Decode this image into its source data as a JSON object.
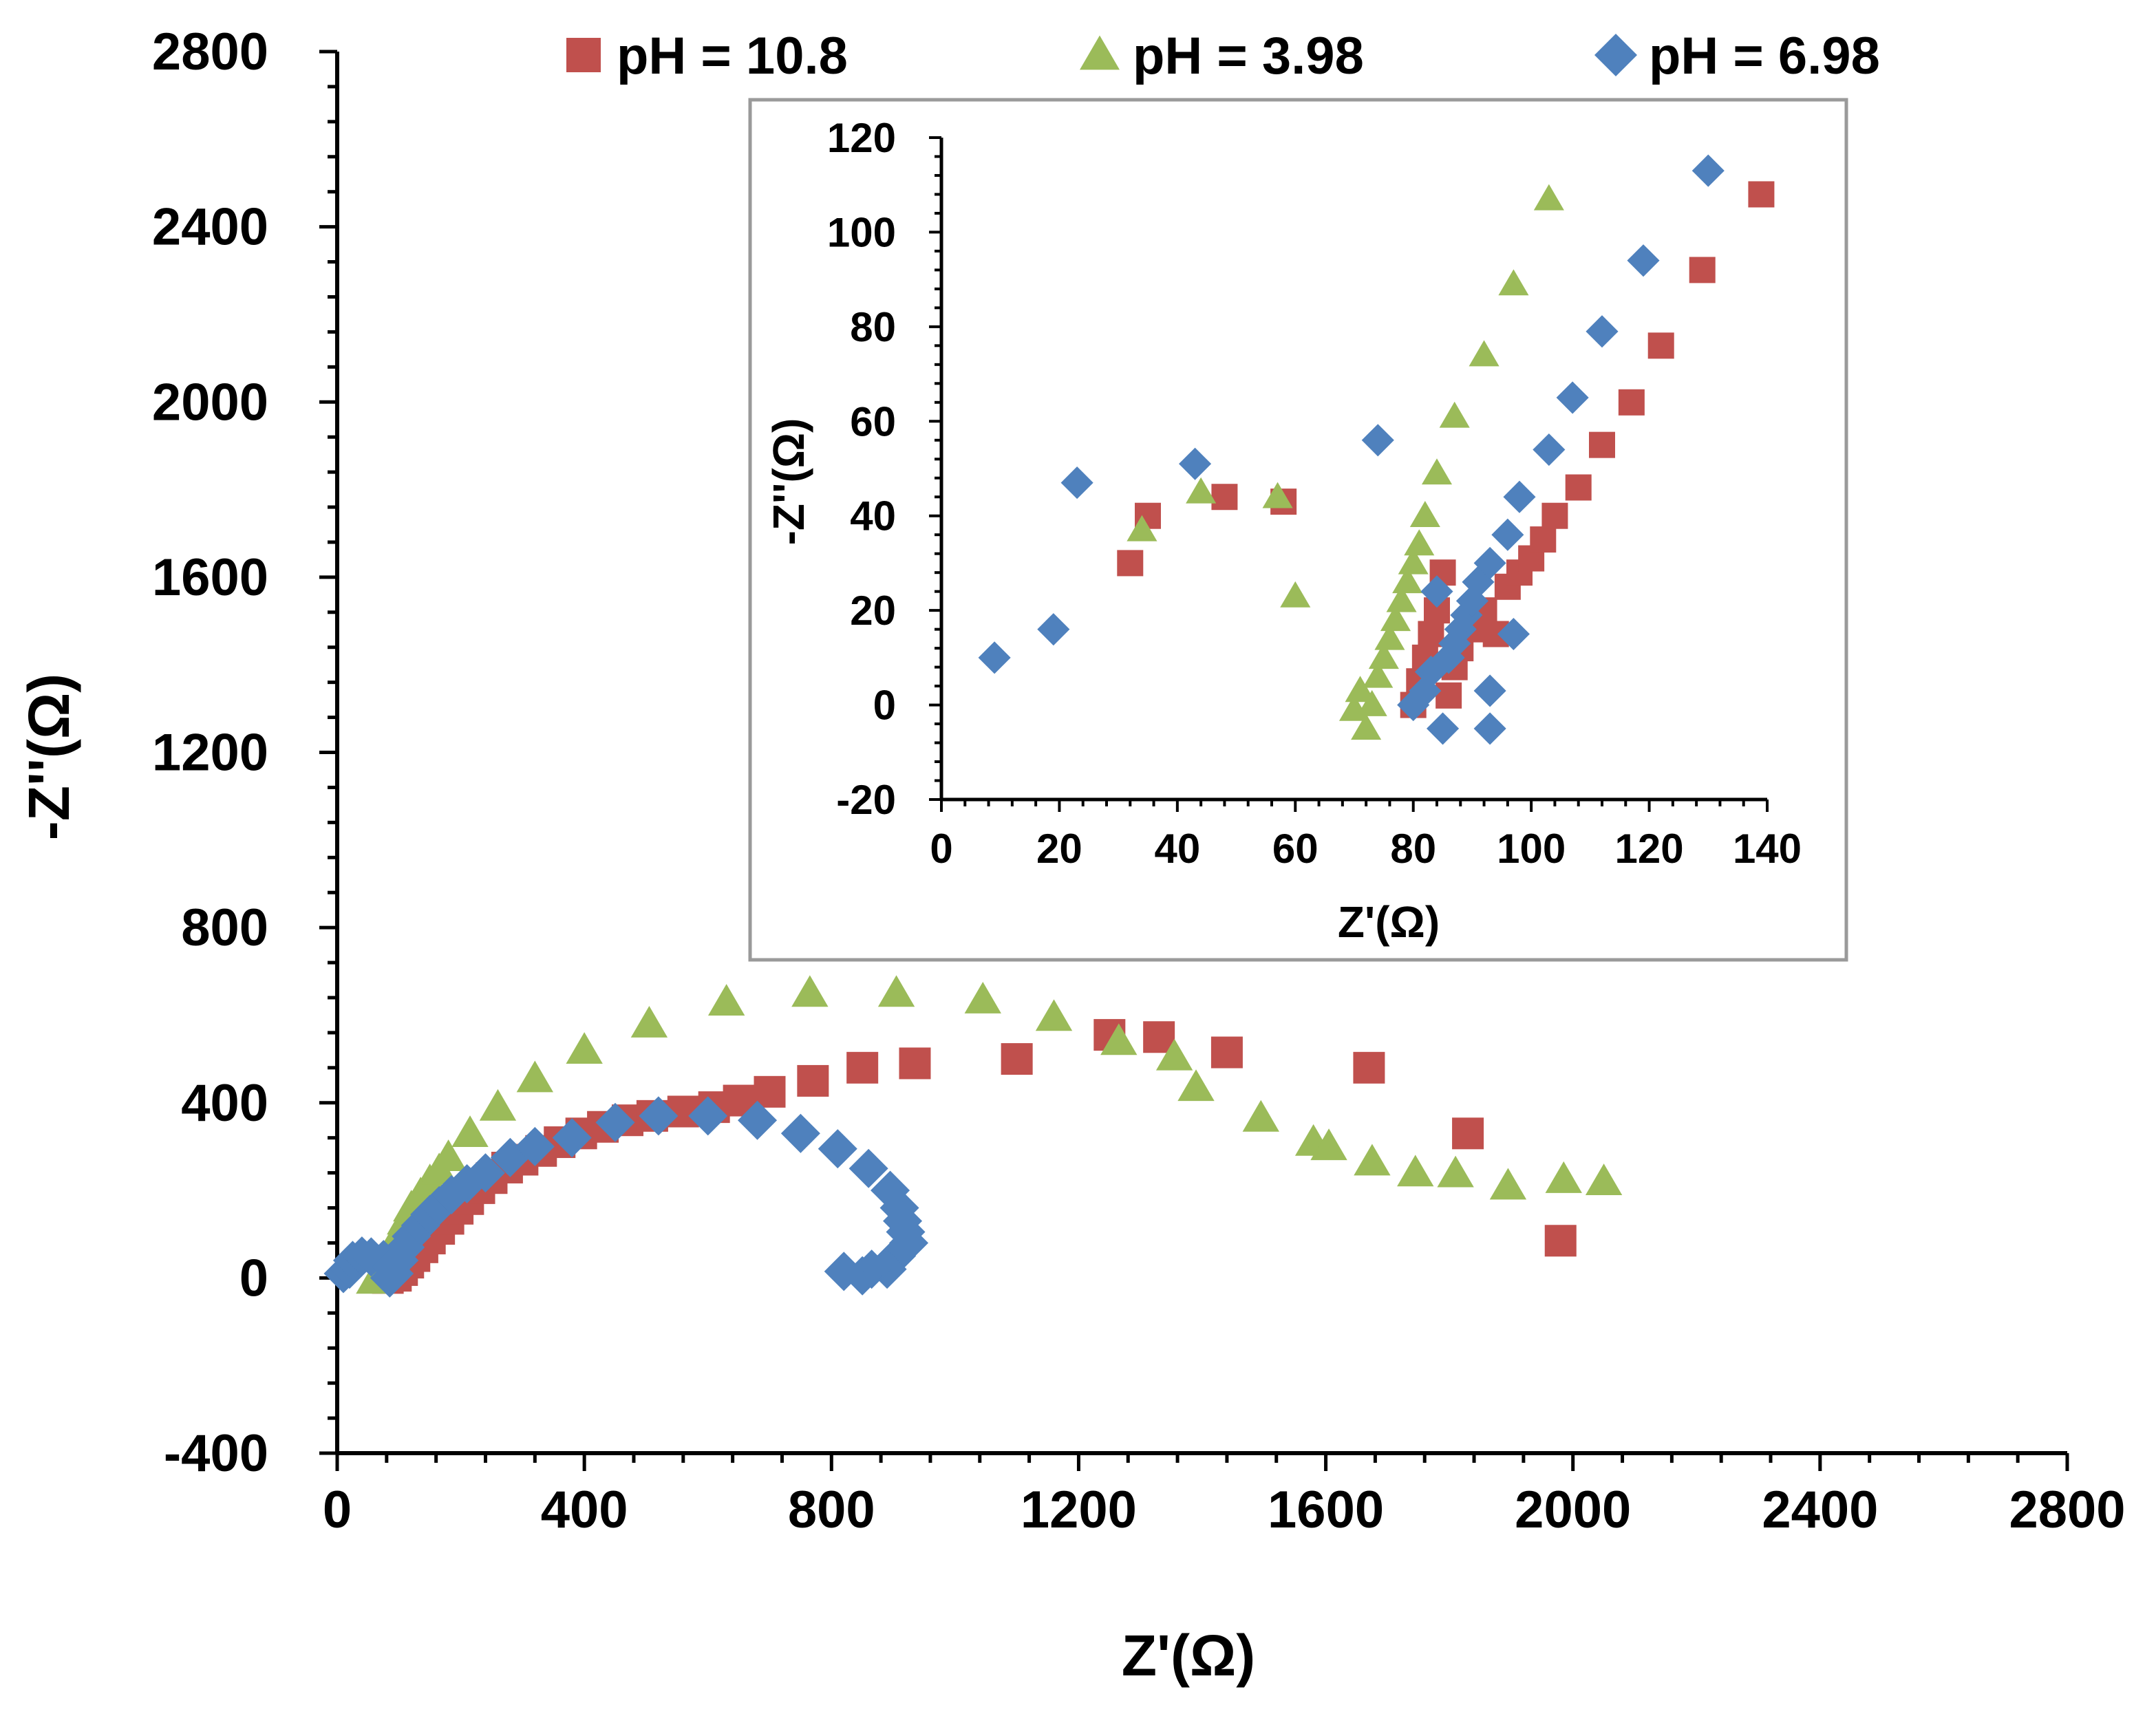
{
  "chart_data": [
    {
      "id": "main",
      "type": "scatter",
      "xlabel": "Z'(Ω)",
      "ylabel": "-Z''(Ω)",
      "xlim": [
        0,
        2800
      ],
      "ylim": [
        -400,
        2800
      ],
      "xticks": [
        "0",
        "400",
        "800",
        "1200",
        "1600",
        "2000",
        "2400",
        "2800"
      ],
      "yticks": [
        "-400",
        "0",
        "400",
        "800",
        "1200",
        "1600",
        "2000",
        "2400",
        "2800"
      ],
      "grid": false,
      "legend_position": "top",
      "series": [
        {
          "name": "pH = 10.8",
          "color": "#C0504D",
          "marker": "square",
          "points": [
            [
              82,
              0
            ],
            [
              95,
              5
            ],
            [
              105,
              18
            ],
            [
              115,
              35
            ],
            [
              125,
              50
            ],
            [
              138,
              70
            ],
            [
              150,
              90
            ],
            [
              165,
              112
            ],
            [
              180,
              135
            ],
            [
              195,
              158
            ],
            [
              212,
              180
            ],
            [
              230,
              205
            ],
            [
              250,
              228
            ],
            [
              275,
              252
            ],
            [
              300,
              270
            ],
            [
              330,
              290
            ],
            [
              360,
              310
            ],
            [
              395,
              330
            ],
            [
              430,
              345
            ],
            [
              470,
              360
            ],
            [
              510,
              370
            ],
            [
              560,
              380
            ],
            [
              610,
              390
            ],
            [
              650,
              405
            ],
            [
              700,
              425
            ],
            [
              770,
              450
            ],
            [
              850,
              480
            ],
            [
              935,
              490
            ],
            [
              1100,
              500
            ],
            [
              1250,
              555
            ],
            [
              1330,
              550
            ],
            [
              1440,
              515
            ],
            [
              1670,
              480
            ],
            [
              1830,
              330
            ],
            [
              1980,
              85
            ]
          ]
        },
        {
          "name": "pH = 3.98",
          "color": "#9BBB59",
          "marker": "triangle",
          "points": [
            [
              60,
              -5
            ],
            [
              70,
              10
            ],
            [
              80,
              40
            ],
            [
              90,
              70
            ],
            [
              100,
              100
            ],
            [
              110,
              130
            ],
            [
              120,
              160
            ],
            [
              135,
              190
            ],
            [
              150,
              220
            ],
            [
              165,
              245
            ],
            [
              180,
              275
            ],
            [
              215,
              330
            ],
            [
              260,
              390
            ],
            [
              320,
              455
            ],
            [
              400,
              520
            ],
            [
              505,
              580
            ],
            [
              630,
              630
            ],
            [
              765,
              650
            ],
            [
              905,
              650
            ],
            [
              1045,
              635
            ],
            [
              1160,
              595
            ],
            [
              1265,
              540
            ],
            [
              1355,
              505
            ],
            [
              1390,
              435
            ],
            [
              1495,
              365
            ],
            [
              1580,
              310
            ],
            [
              1605,
              300
            ],
            [
              1675,
              265
            ],
            [
              1745,
              240
            ],
            [
              1810,
              238
            ],
            [
              1895,
              210
            ],
            [
              1985,
              225
            ],
            [
              2050,
              220
            ]
          ]
        },
        {
          "name": "pH = 6.98",
          "color": "#4F81BD",
          "marker": "diamond",
          "points": [
            [
              10,
              10
            ],
            [
              20,
              20
            ],
            [
              25,
              40
            ],
            [
              40,
              50
            ],
            [
              55,
              48
            ],
            [
              75,
              42
            ],
            [
              88,
              25
            ],
            [
              92,
              10
            ],
            [
              85,
              0
            ],
            [
              100,
              40
            ],
            [
              110,
              70
            ],
            [
              120,
              95
            ],
            [
              135,
              120
            ],
            [
              150,
              145
            ],
            [
              165,
              165
            ],
            [
              185,
              190
            ],
            [
              210,
              215
            ],
            [
              240,
              240
            ],
            [
              280,
              275
            ],
            [
              320,
              300
            ],
            [
              380,
              320
            ],
            [
              450,
              355
            ],
            [
              520,
              370
            ],
            [
              600,
              370
            ],
            [
              680,
              360
            ],
            [
              750,
              330
            ],
            [
              810,
              295
            ],
            [
              860,
              250
            ],
            [
              895,
              200
            ],
            [
              910,
              160
            ],
            [
              915,
              130
            ],
            [
              920,
              105
            ],
            [
              925,
              80
            ],
            [
              905,
              50
            ],
            [
              890,
              20
            ],
            [
              865,
              20
            ],
            [
              850,
              5
            ],
            [
              820,
              15
            ]
          ]
        }
      ]
    },
    {
      "id": "inset",
      "type": "scatter",
      "xlabel": "Z'(Ω)",
      "ylabel": "-Z''(Ω)",
      "xlim": [
        0,
        140
      ],
      "ylim": [
        -20,
        120
      ],
      "xticks": [
        "0",
        "20",
        "40",
        "60",
        "80",
        "100",
        "120",
        "140"
      ],
      "yticks": [
        "-20",
        "0",
        "20",
        "40",
        "60",
        "80",
        "100",
        "120"
      ],
      "grid": false,
      "series": [
        {
          "name": "pH = 10.8",
          "color": "#C0504D",
          "marker": "square",
          "points": [
            [
              32,
              30
            ],
            [
              35,
              40
            ],
            [
              48,
              44
            ],
            [
              58,
              43
            ],
            [
              80,
              0
            ],
            [
              81,
              5
            ],
            [
              82,
              10
            ],
            [
              83,
              15
            ],
            [
              84,
              20
            ],
            [
              85,
              28
            ],
            [
              86,
              2
            ],
            [
              87,
              8
            ],
            [
              88,
              12
            ],
            [
              90,
              16
            ],
            [
              92,
              20
            ],
            [
              94,
              15
            ],
            [
              96,
              25
            ],
            [
              98,
              28
            ],
            [
              100,
              31
            ],
            [
              102,
              35
            ],
            [
              104,
              40
            ],
            [
              108,
              46
            ],
            [
              112,
              55
            ],
            [
              117,
              64
            ],
            [
              122,
              76
            ],
            [
              129,
              92
            ],
            [
              139,
              108
            ]
          ]
        },
        {
          "name": "pH = 3.98",
          "color": "#9BBB59",
          "marker": "triangle",
          "points": [
            [
              34,
              37
            ],
            [
              44,
              45
            ],
            [
              57,
              44
            ],
            [
              60,
              23
            ],
            [
              70,
              -1
            ],
            [
              71,
              3
            ],
            [
              72,
              -5
            ],
            [
              73,
              0
            ],
            [
              74,
              6
            ],
            [
              75,
              10
            ],
            [
              76,
              14
            ],
            [
              77,
              18
            ],
            [
              78,
              22
            ],
            [
              79,
              26
            ],
            [
              80,
              30
            ],
            [
              81,
              34
            ],
            [
              82,
              40
            ],
            [
              84,
              49
            ],
            [
              87,
              61
            ],
            [
              92,
              74
            ],
            [
              97,
              89
            ],
            [
              103,
              107
            ]
          ]
        },
        {
          "name": "pH = 6.98",
          "color": "#4F81BD",
          "marker": "diamond",
          "points": [
            [
              9,
              10
            ],
            [
              19,
              16
            ],
            [
              23,
              47
            ],
            [
              43,
              51
            ],
            [
              74,
              56
            ],
            [
              80,
              0
            ],
            [
              82,
              3
            ],
            [
              83,
              7
            ],
            [
              84,
              24
            ],
            [
              85,
              -5
            ],
            [
              86,
              10
            ],
            [
              87,
              13
            ],
            [
              88,
              16
            ],
            [
              89,
              19
            ],
            [
              90,
              22
            ],
            [
              91,
              26
            ],
            [
              93,
              30
            ],
            [
              93,
              3
            ],
            [
              93,
              -5
            ],
            [
              96,
              36
            ],
            [
              97,
              15
            ],
            [
              98,
              44
            ],
            [
              103,
              54
            ],
            [
              107,
              65
            ],
            [
              112,
              79
            ],
            [
              119,
              94
            ],
            [
              130,
              113
            ]
          ]
        }
      ]
    }
  ]
}
